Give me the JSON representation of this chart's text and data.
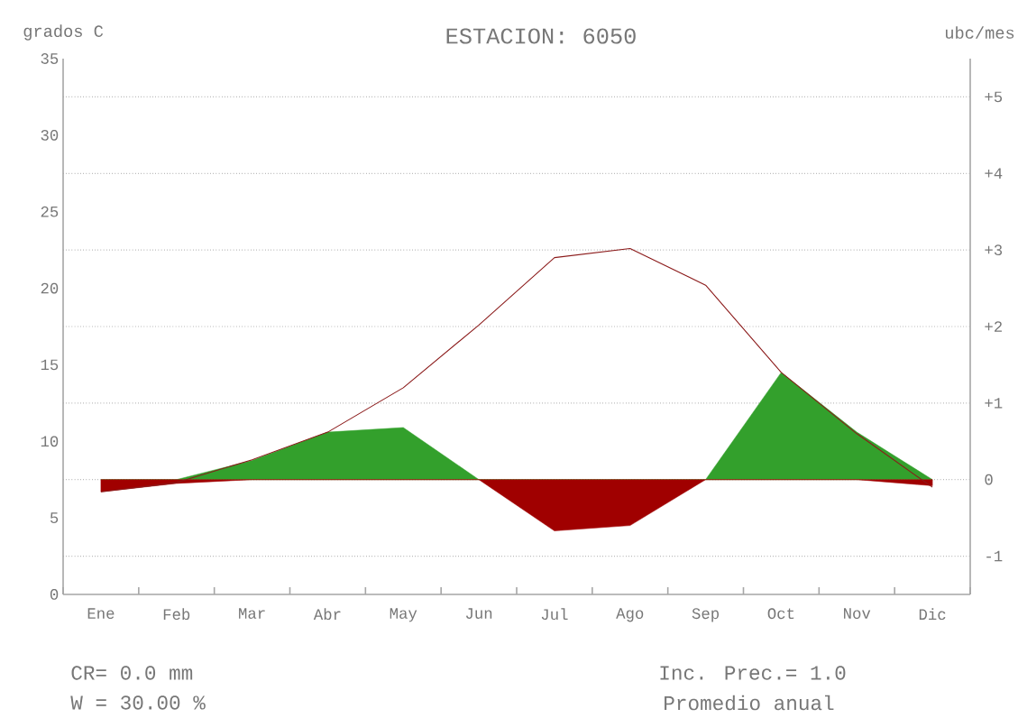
{
  "chart_data": {
    "type": "line",
    "title": "ESTACION: 6050",
    "ylabel": "grados C",
    "y2label": "ubc/mes",
    "categories": [
      "Ene",
      "Feb",
      "Mar",
      "Abr",
      "May",
      "Jun",
      "Jul",
      "Ago",
      "Sep",
      "Oct",
      "Nov",
      "Dic"
    ],
    "series": [
      {
        "type": "area",
        "axis": "y2",
        "color": "#33a02c",
        "values": [
          0,
          0,
          0.25,
          0.62,
          0.68,
          0,
          0,
          0,
          0,
          1.4,
          0.62,
          0
        ]
      },
      {
        "type": "area",
        "axis": "y2",
        "color": "#a00000",
        "values": [
          -0.16,
          -0.05,
          0,
          0,
          0,
          0,
          -0.67,
          -0.6,
          0,
          0,
          0,
          -0.08
        ]
      },
      {
        "color": "#8b1a1a",
        "values": [
          6.7,
          7.3,
          8.8,
          10.6,
          13.5,
          17.6,
          22.0,
          22.6,
          20.2,
          14.5,
          10.5,
          7.0
        ]
      }
    ],
    "ylim": [
      0,
      35
    ],
    "yticks": [
      0,
      5,
      10,
      15,
      20,
      25,
      30,
      35
    ],
    "y2lim": [
      -1.5,
      5.5
    ],
    "y2ticks": [
      {
        "value": -1,
        "label": "-1"
      },
      {
        "value": 0,
        "label": "0"
      },
      {
        "value": 1,
        "label": "+1"
      },
      {
        "value": 2,
        "label": "+2"
      },
      {
        "value": 3,
        "label": "+3"
      },
      {
        "value": 4,
        "label": "+4"
      },
      {
        "value": 5,
        "label": "+5"
      }
    ],
    "grid": "y2",
    "annotations": [
      "CR=   0.0 mm",
      "W = 30.00 %",
      "Inc. Prec.= 1.0",
      "Promedio anual"
    ]
  }
}
